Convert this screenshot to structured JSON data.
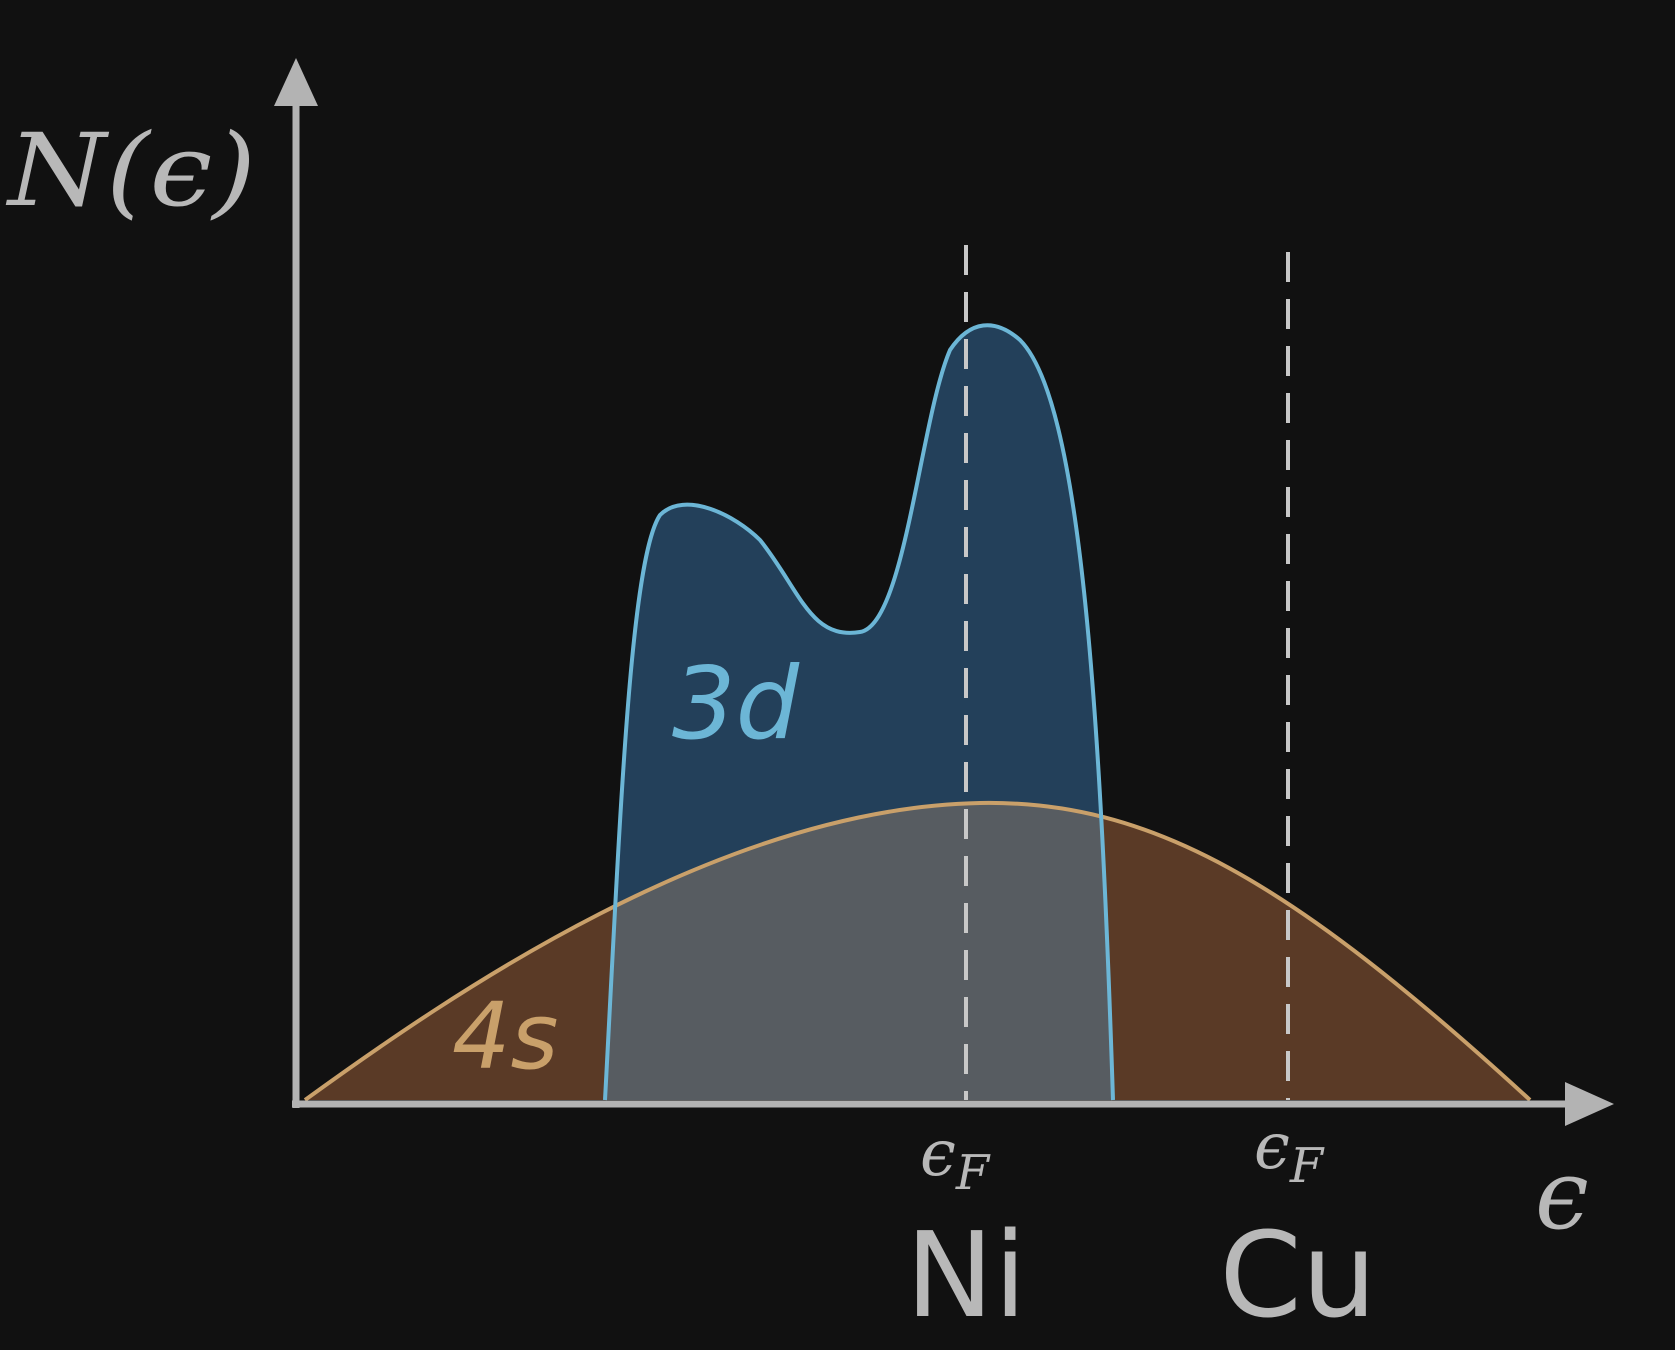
{
  "axes": {
    "y_label": "N(ϵ)",
    "x_label": "ϵ"
  },
  "bands": {
    "s_label": "4s",
    "d_label": "3d"
  },
  "fermi_levels": [
    {
      "symbol": "ϵ",
      "subscript": "F",
      "metal": "Ni"
    },
    {
      "symbol": "ϵ",
      "subscript": "F",
      "metal": "Cu"
    }
  ],
  "colors": {
    "background": "#111111",
    "axis": "#b3b3b3",
    "s_band_fill": "#5a3a26",
    "s_band_line": "#c9a06a",
    "s_band_text": "#c9a06a",
    "d_band_fill": "#23405a",
    "d_band_line": "#6cb6d6",
    "d_band_text": "#6cb6d6",
    "overlap_fill": "#575c61",
    "dashed_line": "#c8c8c8",
    "label_text": "#b8b8b8"
  }
}
